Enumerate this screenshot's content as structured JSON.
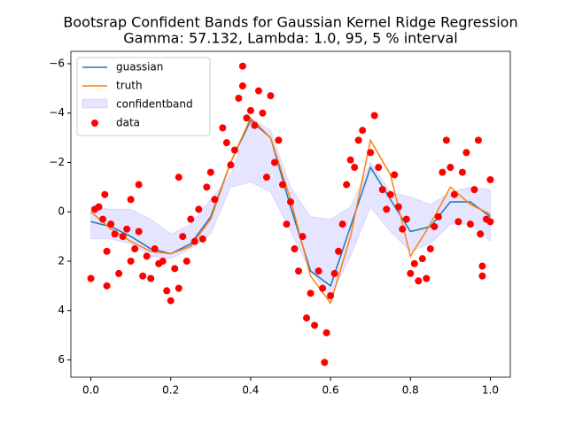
{
  "chart_data": {
    "type": "line",
    "title": "Bootsrap Confident Bands for Gaussian Kernel Ridge Regression",
    "subtitle": "Gamma: 57.132, Lambda: 1.0, 95, 5 % interval",
    "x": [
      0,
      0.05,
      0.1,
      0.15,
      0.2,
      0.25,
      0.3,
      0.35,
      0.4,
      0.45,
      0.5,
      0.55,
      0.6,
      0.65,
      0.7,
      0.75,
      0.8,
      0.85,
      0.9,
      0.95,
      1.0
    ],
    "series": [
      {
        "name": "guassian",
        "color": "#1f77b4",
        "values": [
          0.4,
          0.6,
          1.0,
          1.5,
          1.7,
          1.3,
          0.2,
          -2.0,
          -3.7,
          -3.0,
          -0.2,
          2.4,
          3.0,
          0.6,
          -1.8,
          -0.5,
          0.8,
          0.6,
          -0.4,
          -0.4,
          0.2
        ]
      },
      {
        "name": "truth",
        "color": "#ff7f0e",
        "values": [
          0,
          0.7,
          1.2,
          1.6,
          1.7,
          1.4,
          0.3,
          -2.0,
          -3.8,
          -3.0,
          -0.5,
          2.6,
          3.7,
          1.0,
          -2.9,
          -1.5,
          1.8,
          0.5,
          -1.0,
          -0.3,
          0.1
        ]
      }
    ],
    "band": {
      "name": "confidentband",
      "color": "#0000ff",
      "lower": [
        -0.2,
        -0.1,
        -0.1,
        0.3,
        0.9,
        0.5,
        -0.5,
        -1.5,
        -3.8,
        -3.3,
        -1.0,
        0.2,
        0.3,
        -0.2,
        -2.0,
        -0.8,
        -0.6,
        -0.3,
        -0.8,
        -1.0,
        -0.9
      ],
      "upper": [
        1.1,
        1.1,
        1.3,
        1.8,
        1.9,
        1.5,
        0.9,
        -1.0,
        -1.2,
        -0.8,
        0.8,
        2.4,
        3.4,
        1.8,
        -0.2,
        0.8,
        1.6,
        1.3,
        0.5,
        0.5,
        1.2
      ]
    },
    "scatter": {
      "name": "data",
      "color": "#ff0000",
      "x": [
        0.0,
        0.01,
        0.02,
        0.03,
        0.035,
        0.04,
        0.04,
        0.05,
        0.06,
        0.07,
        0.08,
        0.09,
        0.1,
        0.1,
        0.11,
        0.12,
        0.12,
        0.13,
        0.14,
        0.15,
        0.16,
        0.17,
        0.18,
        0.19,
        0.2,
        0.21,
        0.22,
        0.22,
        0.23,
        0.24,
        0.25,
        0.26,
        0.27,
        0.28,
        0.29,
        0.3,
        0.31,
        0.33,
        0.34,
        0.35,
        0.36,
        0.37,
        0.38,
        0.38,
        0.39,
        0.4,
        0.41,
        0.42,
        0.43,
        0.44,
        0.45,
        0.46,
        0.47,
        0.48,
        0.49,
        0.5,
        0.51,
        0.52,
        0.53,
        0.54,
        0.55,
        0.56,
        0.57,
        0.58,
        0.585,
        0.59,
        0.6,
        0.61,
        0.62,
        0.63,
        0.64,
        0.65,
        0.66,
        0.67,
        0.68,
        0.7,
        0.71,
        0.72,
        0.73,
        0.74,
        0.75,
        0.76,
        0.77,
        0.78,
        0.79,
        0.8,
        0.81,
        0.82,
        0.83,
        0.84,
        0.85,
        0.86,
        0.87,
        0.88,
        0.89,
        0.9,
        0.91,
        0.92,
        0.93,
        0.94,
        0.95,
        0.96,
        0.97,
        0.975,
        0.98,
        0.98,
        0.99,
        1.0,
        1.0
      ],
      "y": [
        2.7,
        -0.1,
        -0.2,
        0.3,
        -0.7,
        3.0,
        1.6,
        0.5,
        0.9,
        2.5,
        1.0,
        0.7,
        2.0,
        -0.5,
        1.5,
        -1.1,
        0.8,
        2.6,
        1.8,
        2.7,
        1.5,
        2.1,
        2.0,
        3.2,
        3.6,
        2.3,
        3.1,
        -1.4,
        1.0,
        2.0,
        0.3,
        1.2,
        -0.1,
        1.1,
        -1.0,
        -1.6,
        -0.5,
        -3.4,
        -2.8,
        -1.9,
        -2.5,
        -4.6,
        -5.9,
        -5.1,
        -3.8,
        -4.1,
        -3.5,
        -4.9,
        -4.0,
        -1.4,
        -4.7,
        -2.0,
        -2.9,
        -1.1,
        0.5,
        -0.4,
        1.5,
        2.4,
        1.0,
        4.3,
        3.3,
        4.6,
        2.4,
        3.1,
        6.1,
        4.9,
        3.4,
        2.5,
        1.6,
        0.5,
        -1.1,
        -2.1,
        -1.8,
        -2.9,
        -3.3,
        -2.4,
        -3.9,
        -1.8,
        -0.9,
        -0.1,
        -0.7,
        -1.5,
        -0.2,
        0.7,
        0.3,
        2.5,
        2.1,
        2.8,
        1.9,
        2.7,
        1.5,
        0.6,
        0.2,
        -1.6,
        -2.9,
        -1.8,
        -0.7,
        0.4,
        -1.6,
        -2.4,
        0.5,
        -0.9,
        -2.9,
        0.9,
        2.6,
        2.2,
        0.3,
        -1.3,
        0.4
      ]
    },
    "xlim": [
      -0.05,
      1.05
    ],
    "ylim": [
      6.7,
      -6.5
    ],
    "xticks": [
      {
        "value": 0,
        "label": "0.0"
      },
      {
        "value": 0.2,
        "label": "0.2"
      },
      {
        "value": 0.4,
        "label": "0.4"
      },
      {
        "value": 0.6,
        "label": "0.6"
      },
      {
        "value": 0.8,
        "label": "0.8"
      },
      {
        "value": 1.0,
        "label": "1.0"
      }
    ],
    "yticks": [
      {
        "value": -6,
        "label": "−6"
      },
      {
        "value": -4,
        "label": "−4"
      },
      {
        "value": -2,
        "label": "−2"
      },
      0,
      2,
      4,
      6
    ],
    "legend": "upper left"
  }
}
